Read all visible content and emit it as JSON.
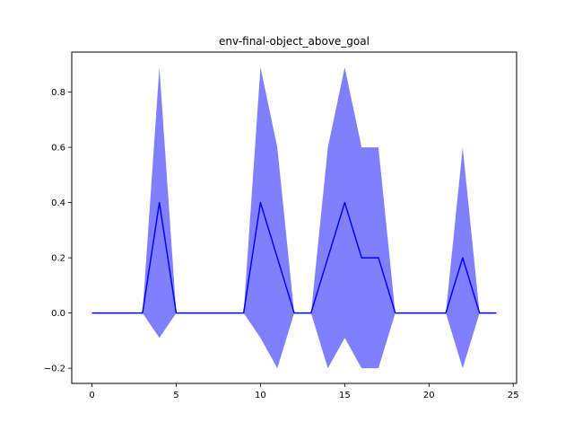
{
  "chart_data": {
    "type": "line",
    "title": "env-final-object_above_goal",
    "xlabel": "",
    "ylabel": "",
    "xlim": [
      -1.2,
      25.2
    ],
    "ylim": [
      -0.255,
      0.945
    ],
    "x_ticks": [
      0,
      5,
      10,
      15,
      20,
      25
    ],
    "x_tick_labels": [
      "0",
      "5",
      "10",
      "15",
      "20",
      "25"
    ],
    "y_ticks": [
      -0.2,
      0.0,
      0.2,
      0.4,
      0.6,
      0.8
    ],
    "y_tick_labels": [
      "−0.2",
      "0.0",
      "0.2",
      "0.4",
      "0.6",
      "0.8"
    ],
    "grid": false,
    "series": [
      {
        "line_color": "#0000ff",
        "band_color": "#8080ff",
        "x": [
          0,
          1,
          2,
          3,
          4,
          5,
          6,
          7,
          8,
          9,
          10,
          11,
          12,
          13,
          14,
          15,
          16,
          17,
          18,
          19,
          20,
          21,
          22,
          23,
          24
        ],
        "mean": [
          0,
          0,
          0,
          0,
          0.4,
          0,
          0,
          0,
          0,
          0,
          0.4,
          0.2,
          0,
          0,
          0.2,
          0.4,
          0.2,
          0.2,
          0,
          0,
          0,
          0,
          0.2,
          0,
          0
        ],
        "upper": [
          0,
          0,
          0,
          0,
          0.89,
          0,
          0,
          0,
          0,
          0,
          0.89,
          0.6,
          0,
          0,
          0.6,
          0.89,
          0.6,
          0.6,
          0,
          0,
          0,
          0,
          0.6,
          0,
          0
        ],
        "lower": [
          0,
          0,
          0,
          0,
          -0.09,
          0,
          0,
          0,
          0,
          0,
          -0.09,
          -0.2,
          0,
          0,
          -0.2,
          -0.09,
          -0.2,
          -0.2,
          0,
          0,
          0,
          0,
          -0.2,
          0,
          0
        ]
      }
    ]
  }
}
